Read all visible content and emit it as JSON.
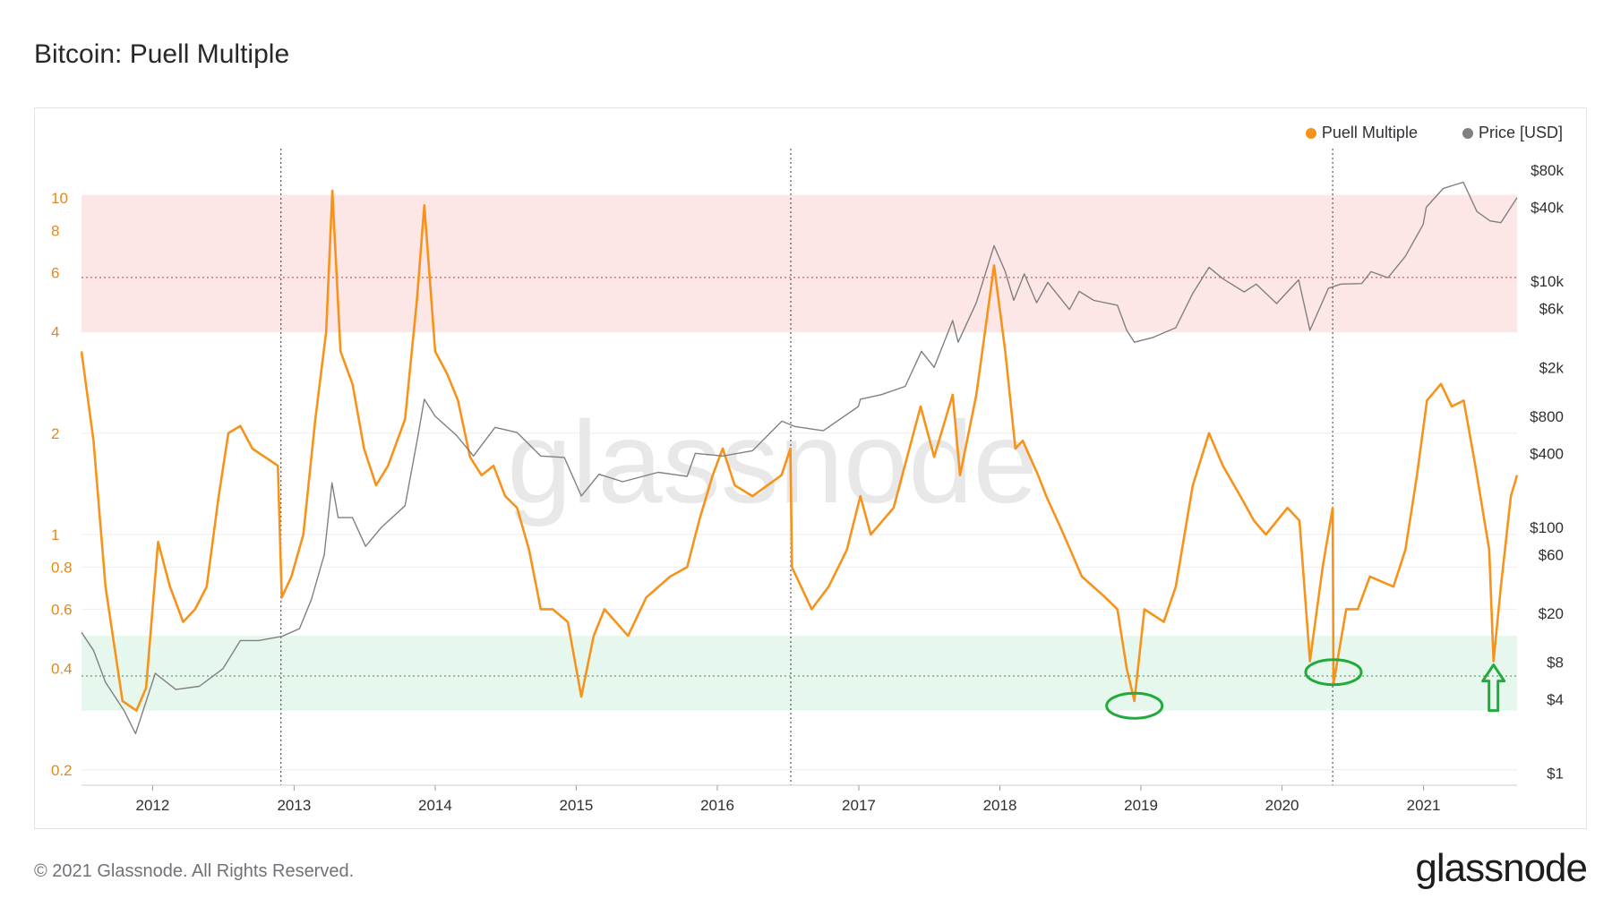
{
  "title": "Bitcoin: Puell Multiple",
  "footer": {
    "copyright": "© 2021 Glassnode. All Rights Reserved.",
    "brand": "glassnode"
  },
  "watermark": "glassnode",
  "colors": {
    "puell": "#f7931a",
    "price": "#808080",
    "red_band": "#fde6e6",
    "green_band": "#e6f7ee",
    "annotation": "#22aa3c"
  },
  "chart_data": {
    "type": "line",
    "title": "Bitcoin: Puell Multiple",
    "x_range": [
      "2011-07-01",
      "2021-08-31"
    ],
    "x_ticks": [
      "2012",
      "2013",
      "2014",
      "2015",
      "2016",
      "2017",
      "2018",
      "2019",
      "2020",
      "2021"
    ],
    "y_left": {
      "scale": "log",
      "range": [
        0.18,
        14
      ],
      "ticks": [
        "0.2",
        "0.4",
        "0.6",
        "0.8",
        "1",
        "2",
        "4",
        "6",
        "8",
        "10"
      ]
    },
    "y_right": {
      "scale": "log",
      "range": [
        0.8,
        120000
      ],
      "ticks": [
        "$1",
        "$4",
        "$8",
        "$20",
        "$60",
        "$100",
        "$400",
        "$800",
        "$2k",
        "$6k",
        "$10k",
        "$40k",
        "$80k"
      ]
    },
    "bands": [
      {
        "name": "sell-zone",
        "from": 4,
        "to": 10.2,
        "mid": 5.8,
        "color": "#fde6e6"
      },
      {
        "name": "buy-zone",
        "from": 0.3,
        "to": 0.5,
        "mid": 0.38,
        "color": "#e6f7ee"
      }
    ],
    "vlines": [
      "2012-11-28",
      "2016-07-09",
      "2020-05-11"
    ],
    "legend": [
      {
        "name": "Puell Multiple",
        "color": "#f7931a"
      },
      {
        "name": "Price [USD]",
        "color": "#808080"
      }
    ],
    "series": [
      {
        "name": "Puell Multiple",
        "axis": "left",
        "color": "#f7931a",
        "points": [
          [
            "2011-07-01",
            3.5
          ],
          [
            "2011-08-01",
            1.9
          ],
          [
            "2011-09-01",
            0.7
          ],
          [
            "2011-10-15",
            0.32
          ],
          [
            "2011-11-20",
            0.3
          ],
          [
            "2011-12-15",
            0.35
          ],
          [
            "2012-01-15",
            0.95
          ],
          [
            "2012-02-15",
            0.7
          ],
          [
            "2012-03-20",
            0.55
          ],
          [
            "2012-04-20",
            0.6
          ],
          [
            "2012-05-20",
            0.7
          ],
          [
            "2012-06-20",
            1.3
          ],
          [
            "2012-07-15",
            2.0
          ],
          [
            "2012-08-15",
            2.1
          ],
          [
            "2012-09-15",
            1.8
          ],
          [
            "2012-11-20",
            1.6
          ],
          [
            "2012-11-30",
            0.65
          ],
          [
            "2012-12-25",
            0.75
          ],
          [
            "2013-01-25",
            1.0
          ],
          [
            "2013-02-25",
            2.2
          ],
          [
            "2013-03-25",
            4.0
          ],
          [
            "2013-04-10",
            10.5
          ],
          [
            "2013-05-01",
            3.5
          ],
          [
            "2013-06-01",
            2.8
          ],
          [
            "2013-07-01",
            1.8
          ],
          [
            "2013-08-01",
            1.4
          ],
          [
            "2013-09-01",
            1.6
          ],
          [
            "2013-10-15",
            2.2
          ],
          [
            "2013-11-15",
            5.0
          ],
          [
            "2013-12-04",
            9.5
          ],
          [
            "2014-01-01",
            3.5
          ],
          [
            "2014-02-01",
            3.0
          ],
          [
            "2014-03-01",
            2.5
          ],
          [
            "2014-04-01",
            1.7
          ],
          [
            "2014-05-01",
            1.5
          ],
          [
            "2014-06-01",
            1.6
          ],
          [
            "2014-07-01",
            1.3
          ],
          [
            "2014-08-01",
            1.2
          ],
          [
            "2014-09-01",
            0.9
          ],
          [
            "2014-10-01",
            0.6
          ],
          [
            "2014-11-01",
            0.6
          ],
          [
            "2014-12-10",
            0.55
          ],
          [
            "2015-01-14",
            0.33
          ],
          [
            "2015-02-15",
            0.5
          ],
          [
            "2015-03-15",
            0.6
          ],
          [
            "2015-05-15",
            0.5
          ],
          [
            "2015-07-01",
            0.65
          ],
          [
            "2015-09-01",
            0.75
          ],
          [
            "2015-10-15",
            0.8
          ],
          [
            "2015-11-15",
            1.1
          ],
          [
            "2015-12-20",
            1.5
          ],
          [
            "2016-01-15",
            1.8
          ],
          [
            "2016-02-15",
            1.4
          ],
          [
            "2016-04-01",
            1.3
          ],
          [
            "2016-06-15",
            1.5
          ],
          [
            "2016-07-08",
            1.8
          ],
          [
            "2016-07-12",
            0.8
          ],
          [
            "2016-09-01",
            0.6
          ],
          [
            "2016-10-15",
            0.7
          ],
          [
            "2016-12-01",
            0.9
          ],
          [
            "2017-01-05",
            1.3
          ],
          [
            "2017-02-01",
            1.0
          ],
          [
            "2017-04-01",
            1.2
          ],
          [
            "2017-06-10",
            2.4
          ],
          [
            "2017-07-15",
            1.7
          ],
          [
            "2017-09-01",
            2.6
          ],
          [
            "2017-09-20",
            1.5
          ],
          [
            "2017-11-01",
            2.6
          ],
          [
            "2017-12-17",
            6.3
          ],
          [
            "2018-01-15",
            3.5
          ],
          [
            "2018-02-10",
            1.8
          ],
          [
            "2018-03-01",
            1.9
          ],
          [
            "2018-04-10",
            1.5
          ],
          [
            "2018-05-01",
            1.3
          ],
          [
            "2018-06-15",
            1.0
          ],
          [
            "2018-08-01",
            0.75
          ],
          [
            "2018-10-01",
            0.65
          ],
          [
            "2018-11-01",
            0.6
          ],
          [
            "2018-11-25",
            0.4
          ],
          [
            "2018-12-15",
            0.32
          ],
          [
            "2019-01-10",
            0.6
          ],
          [
            "2019-03-01",
            0.55
          ],
          [
            "2019-04-01",
            0.7
          ],
          [
            "2019-05-15",
            1.4
          ],
          [
            "2019-06-26",
            2.0
          ],
          [
            "2019-08-01",
            1.6
          ],
          [
            "2019-09-15",
            1.3
          ],
          [
            "2019-10-20",
            1.1
          ],
          [
            "2019-11-20",
            1.0
          ],
          [
            "2020-01-15",
            1.2
          ],
          [
            "2020-02-15",
            1.1
          ],
          [
            "2020-03-13",
            0.42
          ],
          [
            "2020-04-15",
            0.8
          ],
          [
            "2020-05-11",
            1.2
          ],
          [
            "2020-05-13",
            0.36
          ],
          [
            "2020-06-15",
            0.6
          ],
          [
            "2020-07-15",
            0.6
          ],
          [
            "2020-08-15",
            0.75
          ],
          [
            "2020-10-15",
            0.7
          ],
          [
            "2020-11-15",
            0.9
          ],
          [
            "2020-12-15",
            1.5
          ],
          [
            "2021-01-10",
            2.5
          ],
          [
            "2021-02-15",
            2.8
          ],
          [
            "2021-03-15",
            2.4
          ],
          [
            "2021-04-15",
            2.5
          ],
          [
            "2021-05-15",
            1.6
          ],
          [
            "2021-06-20",
            0.9
          ],
          [
            "2021-07-01",
            0.42
          ],
          [
            "2021-07-20",
            0.7
          ],
          [
            "2021-08-15",
            1.3
          ],
          [
            "2021-08-31",
            1.5
          ]
        ]
      },
      {
        "name": "Price [USD]",
        "axis": "right",
        "color": "#808080",
        "points": [
          [
            "2011-07-01",
            14
          ],
          [
            "2011-08-01",
            10
          ],
          [
            "2011-09-01",
            5.5
          ],
          [
            "2011-10-20",
            3.2
          ],
          [
            "2011-11-18",
            2.1
          ],
          [
            "2012-01-08",
            6.5
          ],
          [
            "2012-03-01",
            4.8
          ],
          [
            "2012-05-01",
            5.1
          ],
          [
            "2012-07-01",
            7.1
          ],
          [
            "2012-08-15",
            12
          ],
          [
            "2012-10-01",
            12
          ],
          [
            "2012-12-01",
            13
          ],
          [
            "2013-01-15",
            15
          ],
          [
            "2013-02-15",
            26
          ],
          [
            "2013-03-20",
            60
          ],
          [
            "2013-04-09",
            230
          ],
          [
            "2013-04-25",
            120
          ],
          [
            "2013-06-01",
            120
          ],
          [
            "2013-07-05",
            70
          ],
          [
            "2013-08-15",
            100
          ],
          [
            "2013-10-15",
            150
          ],
          [
            "2013-11-15",
            500
          ],
          [
            "2013-12-04",
            1100
          ],
          [
            "2014-01-01",
            800
          ],
          [
            "2014-02-25",
            560
          ],
          [
            "2014-04-10",
            380
          ],
          [
            "2014-06-05",
            650
          ],
          [
            "2014-08-01",
            590
          ],
          [
            "2014-10-01",
            380
          ],
          [
            "2014-12-01",
            370
          ],
          [
            "2015-01-14",
            180
          ],
          [
            "2015-03-01",
            270
          ],
          [
            "2015-05-01",
            235
          ],
          [
            "2015-08-01",
            280
          ],
          [
            "2015-10-15",
            260
          ],
          [
            "2015-11-05",
            400
          ],
          [
            "2016-01-15",
            380
          ],
          [
            "2016-04-01",
            420
          ],
          [
            "2016-06-16",
            730
          ],
          [
            "2016-07-20",
            660
          ],
          [
            "2016-10-01",
            610
          ],
          [
            "2016-12-31",
            960
          ],
          [
            "2017-01-05",
            1100
          ],
          [
            "2017-03-01",
            1200
          ],
          [
            "2017-05-01",
            1400
          ],
          [
            "2017-06-12",
            2700
          ],
          [
            "2017-07-15",
            2000
          ],
          [
            "2017-09-01",
            4800
          ],
          [
            "2017-09-15",
            3200
          ],
          [
            "2017-11-01",
            6700
          ],
          [
            "2017-12-17",
            19500
          ],
          [
            "2018-01-15",
            12000
          ],
          [
            "2018-02-06",
            7000
          ],
          [
            "2018-03-05",
            11500
          ],
          [
            "2018-04-06",
            6700
          ],
          [
            "2018-05-05",
            9800
          ],
          [
            "2018-06-30",
            5900
          ],
          [
            "2018-07-25",
            8300
          ],
          [
            "2018-09-01",
            7000
          ],
          [
            "2018-11-01",
            6400
          ],
          [
            "2018-11-25",
            4000
          ],
          [
            "2018-12-15",
            3200
          ],
          [
            "2019-02-01",
            3500
          ],
          [
            "2019-04-01",
            4200
          ],
          [
            "2019-05-15",
            8000
          ],
          [
            "2019-06-26",
            13000
          ],
          [
            "2019-08-01",
            10500
          ],
          [
            "2019-09-25",
            8200
          ],
          [
            "2019-10-26",
            9500
          ],
          [
            "2019-12-18",
            6600
          ],
          [
            "2020-02-13",
            10300
          ],
          [
            "2020-03-13",
            4000
          ],
          [
            "2020-04-30",
            8800
          ],
          [
            "2020-06-01",
            9500
          ],
          [
            "2020-07-25",
            9600
          ],
          [
            "2020-08-18",
            12000
          ],
          [
            "2020-10-01",
            10700
          ],
          [
            "2020-11-15",
            16000
          ],
          [
            "2020-12-31",
            29000
          ],
          [
            "2021-01-08",
            40000
          ],
          [
            "2021-02-21",
            57000
          ],
          [
            "2021-04-14",
            64000
          ],
          [
            "2021-05-19",
            37000
          ],
          [
            "2021-06-22",
            31000
          ],
          [
            "2021-07-20",
            30000
          ],
          [
            "2021-08-31",
            48000
          ]
        ]
      }
    ],
    "annotations": [
      {
        "type": "ellipse",
        "date": "2018-12-15",
        "value": 0.31
      },
      {
        "type": "ellipse",
        "date": "2020-05-13",
        "value": 0.39
      },
      {
        "type": "arrow-up",
        "date": "2021-07-01",
        "value_top": 0.41,
        "value_bottom": 0.3
      }
    ]
  }
}
